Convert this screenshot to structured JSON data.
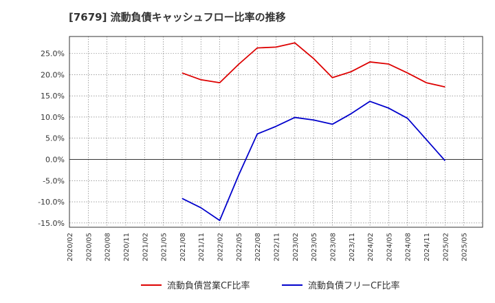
{
  "chart_data": {
    "type": "line",
    "title": "[7679]  流動負債キャッシュフロー比率の推移",
    "xlabel": "",
    "ylabel": "",
    "ylim": [
      -16,
      29
    ],
    "yticks": [
      -15,
      -10,
      -5,
      0,
      5,
      10,
      15,
      20,
      25
    ],
    "ytick_labels": [
      "-15.0%",
      "-10.0%",
      "-5.0%",
      "0.0%",
      "5.0%",
      "10.0%",
      "15.0%",
      "20.0%",
      "25.0%"
    ],
    "x_tick_labels": [
      "2020/02",
      "2020/05",
      "2020/08",
      "2020/11",
      "2021/02",
      "2021/05",
      "2021/08",
      "2021/11",
      "2022/02",
      "2022/05",
      "2022/08",
      "2022/11",
      "2023/02",
      "2023/05",
      "2023/08",
      "2023/11",
      "2024/02",
      "2024/05",
      "2024/08",
      "2024/11",
      "2025/02",
      "2025/05"
    ],
    "grid": true,
    "legend_position": "bottom",
    "series": [
      {
        "name": "流動負債営業CF比率",
        "color": "#dd0000",
        "points": [
          [
            6,
            20.4
          ],
          [
            7,
            18.8
          ],
          [
            8,
            18.1
          ],
          [
            9,
            22.4
          ],
          [
            10,
            26.3
          ],
          [
            11,
            26.5
          ],
          [
            12,
            27.5
          ],
          [
            13,
            23.8
          ],
          [
            14,
            19.3
          ],
          [
            15,
            20.7
          ],
          [
            16,
            23.0
          ],
          [
            17,
            22.5
          ],
          [
            18,
            20.4
          ],
          [
            19,
            18.1
          ],
          [
            20,
            17.1
          ]
        ]
      },
      {
        "name": "流動負債フリーCF比率",
        "color": "#0000cc",
        "points": [
          [
            6,
            -9.2
          ],
          [
            7,
            -11.4
          ],
          [
            8,
            -14.4
          ],
          [
            9,
            -3.8
          ],
          [
            10,
            6.0
          ],
          [
            11,
            7.8
          ],
          [
            12,
            9.9
          ],
          [
            13,
            9.3
          ],
          [
            14,
            8.3
          ],
          [
            15,
            10.8
          ],
          [
            16,
            13.7
          ],
          [
            17,
            12.1
          ],
          [
            18,
            9.7
          ],
          [
            19,
            4.7
          ],
          [
            20,
            -0.3
          ]
        ]
      }
    ]
  }
}
